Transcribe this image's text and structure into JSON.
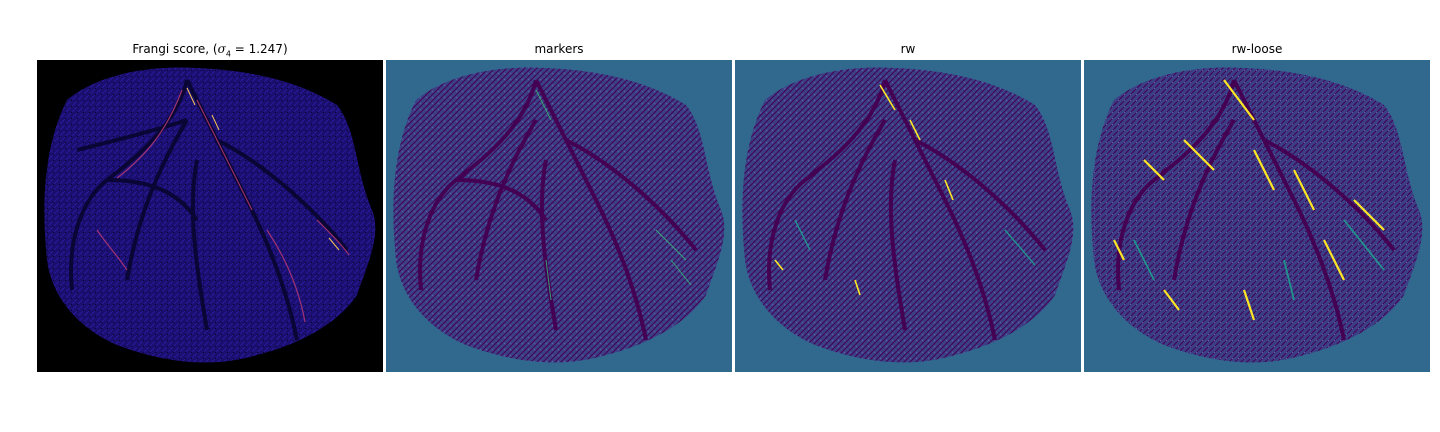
{
  "panels": [
    {
      "title_prefix": "Frangi score, (",
      "sigma_symbol": "σ",
      "sigma_subscript": "4",
      "title_suffix": " = 1.247)",
      "colors": {
        "background": "#000000",
        "tissue": "#1a0f6e",
        "vessel": "#c23b75",
        "highlight": "#f8c555"
      }
    },
    {
      "title": "markers",
      "colors": {
        "background": "#31688e",
        "tissue": "#2b2d73",
        "dark": "#440154",
        "highlight": "#35b779"
      }
    },
    {
      "title": "rw",
      "colors": {
        "background": "#31688e",
        "tissue": "#2b2d73",
        "dark": "#440154",
        "mid": "#21918c",
        "highlight": "#fde725"
      }
    },
    {
      "title": "rw-loose",
      "colors": {
        "background": "#31688e",
        "tissue": "#2b2d73",
        "dark": "#440154",
        "mid": "#21918c",
        "highlight": "#fde725"
      }
    }
  ]
}
